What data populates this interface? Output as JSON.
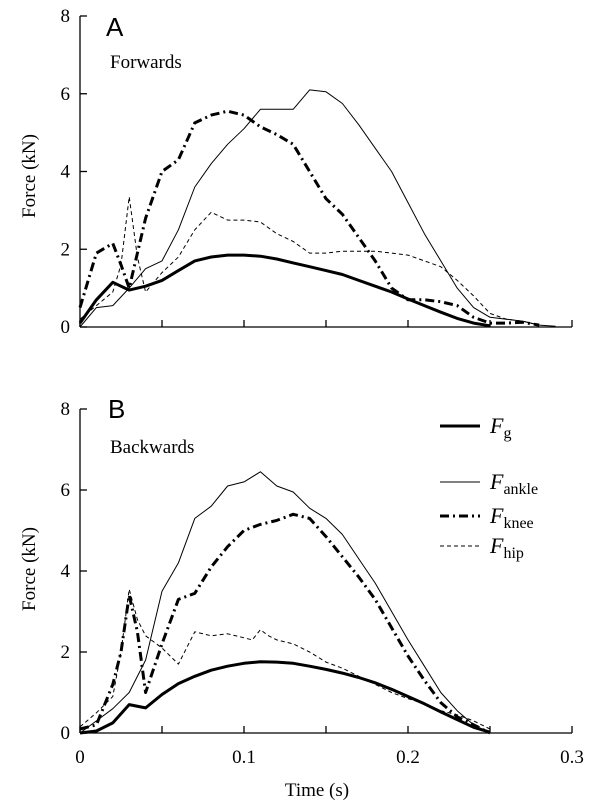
{
  "chart_data": [
    {
      "type": "line",
      "panel_letter": "A",
      "panel_title": "Forwards",
      "xlabel": "",
      "ylabel": "Force (kN)",
      "xlim": [
        0,
        0.3
      ],
      "ylim": [
        0,
        8
      ],
      "yticks": [
        "0",
        "2",
        "4",
        "6",
        "8"
      ],
      "xticks": [],
      "series": [
        {
          "key": "Fg",
          "style": "thick",
          "x": [
            0,
            0.01,
            0.02,
            0.03,
            0.04,
            0.05,
            0.06,
            0.07,
            0.08,
            0.09,
            0.1,
            0.11,
            0.12,
            0.13,
            0.14,
            0.15,
            0.16,
            0.17,
            0.18,
            0.19,
            0.2,
            0.21,
            0.22,
            0.23,
            0.24,
            0.25
          ],
          "y": [
            0.1,
            0.7,
            1.15,
            0.95,
            1.05,
            1.2,
            1.45,
            1.7,
            1.8,
            1.85,
            1.85,
            1.82,
            1.75,
            1.65,
            1.55,
            1.45,
            1.35,
            1.2,
            1.05,
            0.9,
            0.72,
            0.55,
            0.38,
            0.22,
            0.1,
            0.03
          ]
        },
        {
          "key": "Fankle",
          "style": "thin",
          "x": [
            0,
            0.01,
            0.02,
            0.03,
            0.04,
            0.05,
            0.06,
            0.07,
            0.08,
            0.09,
            0.1,
            0.11,
            0.12,
            0.13,
            0.14,
            0.15,
            0.16,
            0.17,
            0.18,
            0.19,
            0.2,
            0.21,
            0.22,
            0.23,
            0.24,
            0.25,
            0.26,
            0.27,
            0.28,
            0.29
          ],
          "y": [
            0,
            0.5,
            0.55,
            1.0,
            1.5,
            1.7,
            2.5,
            3.6,
            4.2,
            4.7,
            5.1,
            5.6,
            5.6,
            5.6,
            6.1,
            6.05,
            5.75,
            5.2,
            4.6,
            4.0,
            3.2,
            2.4,
            1.7,
            1.0,
            0.5,
            0.25,
            0.2,
            0.15,
            0.05,
            0.02
          ]
        },
        {
          "key": "Fknee",
          "style": "dashdot",
          "x": [
            0,
            0.01,
            0.02,
            0.025,
            0.03,
            0.04,
            0.05,
            0.06,
            0.07,
            0.08,
            0.09,
            0.1,
            0.11,
            0.12,
            0.13,
            0.14,
            0.15,
            0.16,
            0.17,
            0.18,
            0.19,
            0.2,
            0.21,
            0.22,
            0.23,
            0.24,
            0.25,
            0.26,
            0.27,
            0.28
          ],
          "y": [
            0.5,
            1.9,
            2.15,
            1.6,
            1.0,
            2.8,
            4.0,
            4.3,
            5.25,
            5.45,
            5.55,
            5.45,
            5.15,
            4.95,
            4.7,
            4.0,
            3.3,
            2.9,
            2.3,
            1.7,
            1.0,
            0.7,
            0.7,
            0.65,
            0.55,
            0.25,
            0.1,
            0.1,
            0.12,
            0.05
          ]
        },
        {
          "key": "Fhip",
          "style": "dashed",
          "x": [
            0,
            0.01,
            0.02,
            0.025,
            0.03,
            0.035,
            0.04,
            0.05,
            0.06,
            0.07,
            0.08,
            0.09,
            0.1,
            0.11,
            0.12,
            0.13,
            0.14,
            0.15,
            0.16,
            0.17,
            0.18,
            0.19,
            0.2,
            0.21,
            0.22,
            0.23,
            0.24,
            0.25,
            0.26,
            0.27,
            0.28
          ],
          "y": [
            0.2,
            0.55,
            0.9,
            1.6,
            3.35,
            1.8,
            0.9,
            1.4,
            1.8,
            2.5,
            2.95,
            2.75,
            2.75,
            2.7,
            2.4,
            2.2,
            1.9,
            1.9,
            1.95,
            1.95,
            1.95,
            1.9,
            1.85,
            1.7,
            1.55,
            1.2,
            0.8,
            0.35,
            0.2,
            0.15,
            0.05
          ]
        }
      ]
    },
    {
      "type": "line",
      "panel_letter": "B",
      "panel_title": "Backwards",
      "xlabel": "Time (s)",
      "ylabel": "Force (kN)",
      "xlim": [
        0,
        0.3
      ],
      "ylim": [
        0,
        8
      ],
      "yticks": [
        "0",
        "2",
        "4",
        "6",
        "8"
      ],
      "xticks": [
        "0",
        "0.1",
        "0.2",
        "0.3"
      ],
      "legend_position": "top-right",
      "series": [
        {
          "key": "Fg",
          "style": "thick",
          "x": [
            0,
            0.01,
            0.02,
            0.03,
            0.04,
            0.05,
            0.06,
            0.07,
            0.08,
            0.09,
            0.1,
            0.11,
            0.12,
            0.13,
            0.14,
            0.15,
            0.16,
            0.17,
            0.18,
            0.19,
            0.2,
            0.21,
            0.22,
            0.23,
            0.24,
            0.25
          ],
          "y": [
            0,
            0.05,
            0.25,
            0.7,
            0.62,
            0.95,
            1.22,
            1.4,
            1.55,
            1.65,
            1.72,
            1.76,
            1.75,
            1.72,
            1.65,
            1.57,
            1.48,
            1.37,
            1.24,
            1.08,
            0.9,
            0.72,
            0.52,
            0.33,
            0.14,
            0.02
          ]
        },
        {
          "key": "Fankle",
          "style": "thin",
          "x": [
            0,
            0.01,
            0.02,
            0.03,
            0.04,
            0.05,
            0.06,
            0.07,
            0.08,
            0.09,
            0.1,
            0.11,
            0.12,
            0.13,
            0.14,
            0.15,
            0.16,
            0.17,
            0.18,
            0.19,
            0.2,
            0.21,
            0.22,
            0.23,
            0.24,
            0.25
          ],
          "y": [
            0,
            0.3,
            0.6,
            1.0,
            1.8,
            3.5,
            4.2,
            5.3,
            5.6,
            6.1,
            6.2,
            6.45,
            6.1,
            5.95,
            5.55,
            5.3,
            4.9,
            4.3,
            3.7,
            3.0,
            2.3,
            1.65,
            1.0,
            0.55,
            0.2,
            0
          ]
        },
        {
          "key": "Fknee",
          "style": "dashdot",
          "x": [
            0,
            0.01,
            0.02,
            0.025,
            0.03,
            0.035,
            0.04,
            0.05,
            0.06,
            0.07,
            0.08,
            0.09,
            0.1,
            0.11,
            0.12,
            0.13,
            0.14,
            0.15,
            0.16,
            0.17,
            0.18,
            0.19,
            0.2,
            0.21,
            0.22,
            0.23,
            0.24,
            0.25
          ],
          "y": [
            0.1,
            0.2,
            1.2,
            2.0,
            3.4,
            2.5,
            1.0,
            2.2,
            3.3,
            3.45,
            4.1,
            4.6,
            5.0,
            5.15,
            5.25,
            5.4,
            5.3,
            4.85,
            4.35,
            3.85,
            3.3,
            2.6,
            1.9,
            1.3,
            0.75,
            0.4,
            0.2,
            0
          ]
        },
        {
          "key": "Fhip",
          "style": "dashed",
          "x": [
            0,
            0.01,
            0.02,
            0.025,
            0.03,
            0.035,
            0.04,
            0.05,
            0.06,
            0.07,
            0.08,
            0.09,
            0.1,
            0.105,
            0.11,
            0.115,
            0.12,
            0.13,
            0.14,
            0.15,
            0.16,
            0.17,
            0.18,
            0.19,
            0.2,
            0.21,
            0.22,
            0.23,
            0.24,
            0.25
          ],
          "y": [
            0.15,
            0.5,
            0.9,
            2.0,
            3.55,
            2.8,
            2.4,
            2.1,
            1.7,
            2.5,
            2.4,
            2.45,
            2.35,
            2.3,
            2.55,
            2.4,
            2.3,
            2.2,
            2.0,
            1.75,
            1.6,
            1.4,
            1.2,
            1.0,
            0.85,
            0.72,
            0.55,
            0.45,
            0.3,
            0.1
          ]
        }
      ],
      "legend": [
        {
          "key": "Fg",
          "main": "F",
          "sub": "g"
        },
        {
          "key": "Fankle",
          "main": "F",
          "sub": "ankle"
        },
        {
          "key": "Fknee",
          "main": "F",
          "sub": "knee"
        },
        {
          "key": "Fhip",
          "main": "F",
          "sub": "hip"
        }
      ]
    }
  ]
}
